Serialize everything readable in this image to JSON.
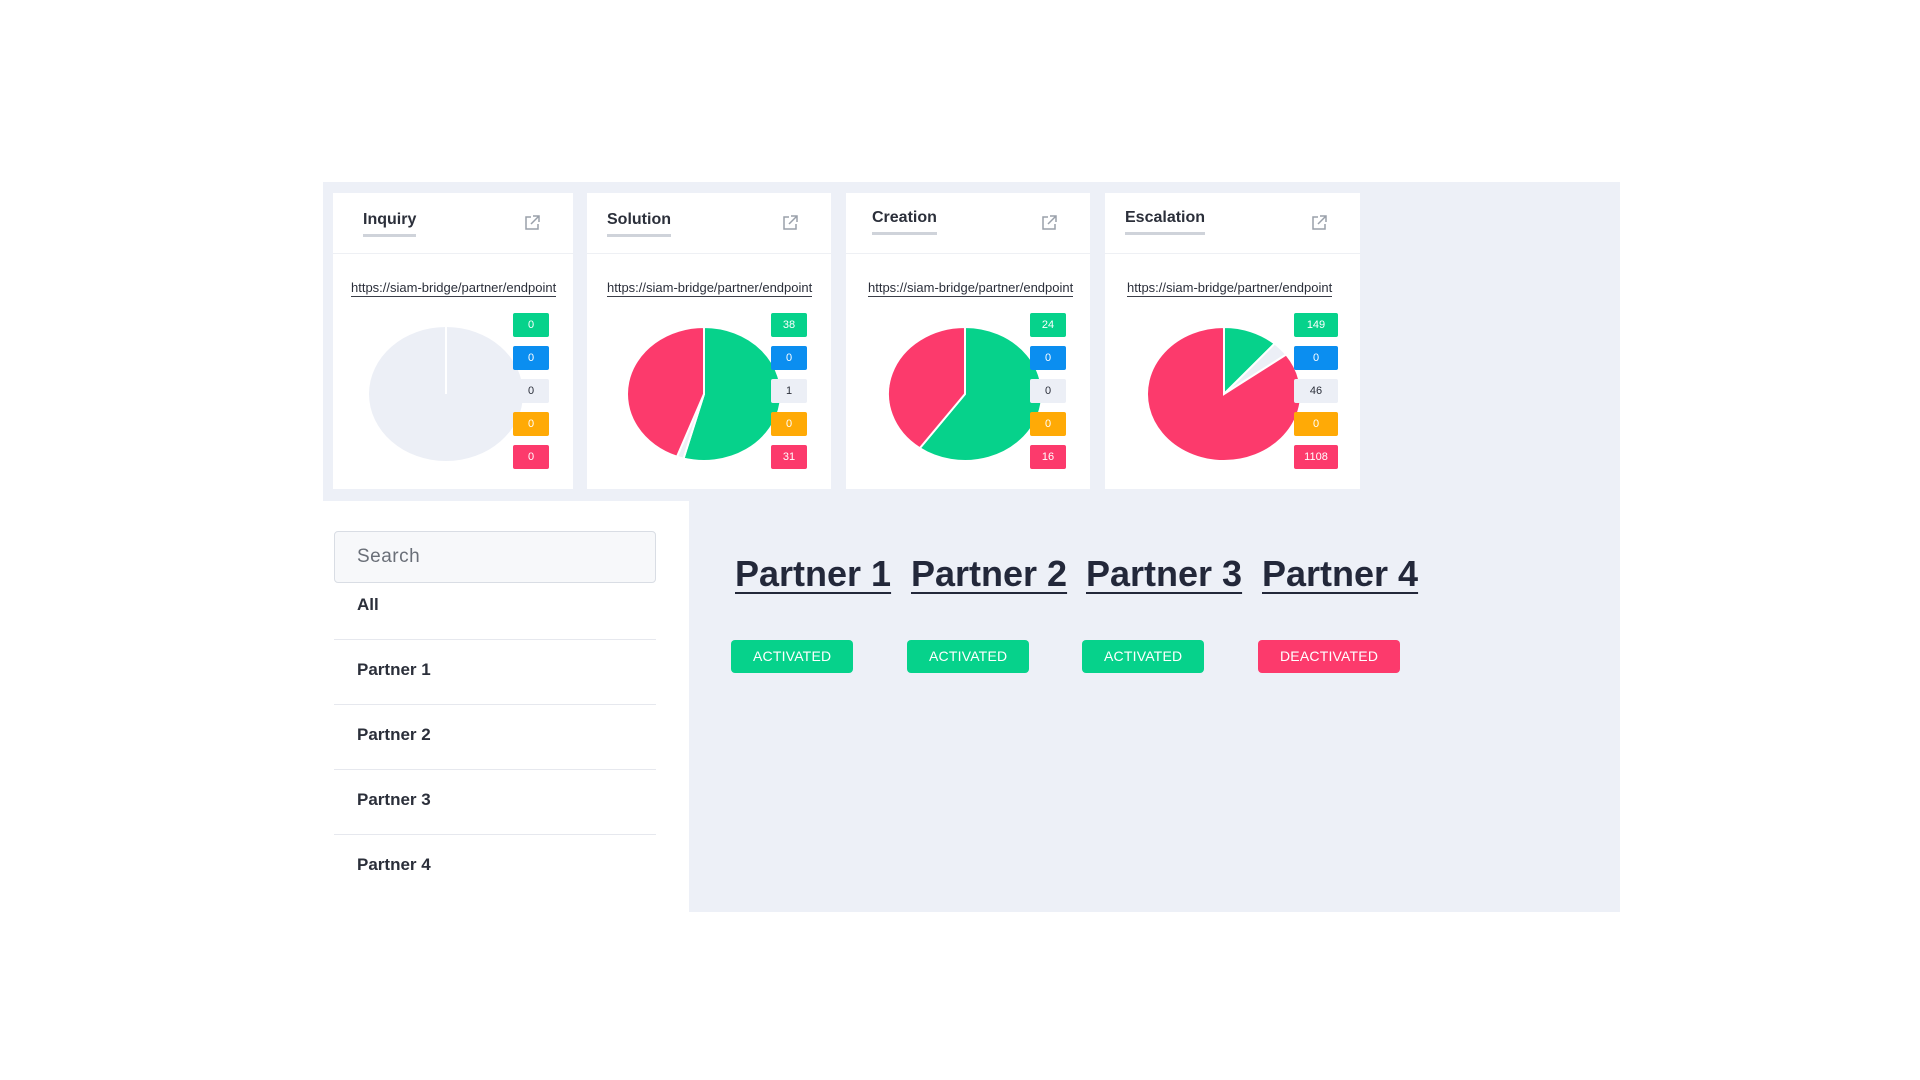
{
  "colors": {
    "green": "#06d28b",
    "blue": "#0b8ef0",
    "grey": "#eceff6",
    "orange": "#ffaa06",
    "red": "#fc3a6c",
    "empty": "#eceff6"
  },
  "cards": [
    {
      "title": "Inquiry",
      "icon": "external-link-icon",
      "url": "https://siam-bridge/partner/endpoint",
      "badges": [
        "0",
        "0",
        "0",
        "0",
        "0"
      ],
      "chart_slices": [
        {
          "label": "green",
          "value": 0
        },
        {
          "label": "grey",
          "value": 0
        },
        {
          "label": "red",
          "value": 0
        }
      ]
    },
    {
      "title": "Solution",
      "icon": "external-link-icon",
      "url": "https://siam-bridge/partner/endpoint",
      "badges": [
        "38",
        "0",
        "1",
        "0",
        "31"
      ],
      "chart_slices": [
        {
          "label": "green",
          "value": 38
        },
        {
          "label": "grey",
          "value": 1
        },
        {
          "label": "red",
          "value": 31
        }
      ]
    },
    {
      "title": "Creation",
      "icon": "external-link-icon",
      "url": "https://siam-bridge/partner/endpoint",
      "badges": [
        "24",
        "0",
        "0",
        "0",
        "16"
      ],
      "chart_slices": [
        {
          "label": "green",
          "value": 24
        },
        {
          "label": "grey",
          "value": 0
        },
        {
          "label": "red",
          "value": 16
        }
      ]
    },
    {
      "title": "Escalation",
      "icon": "external-link-icon",
      "url": "https://siam-bridge/partner/endpoint",
      "badges": [
        "149",
        "0",
        "46",
        "0",
        "1108"
      ],
      "chart_slices": [
        {
          "label": "green",
          "value": 149
        },
        {
          "label": "grey",
          "value": 46
        },
        {
          "label": "red",
          "value": 1108
        }
      ]
    }
  ],
  "search": {
    "placeholder": "Search"
  },
  "list": [
    "All",
    "Partner 1",
    "Partner 2",
    "Partner 3",
    "Partner 4"
  ],
  "partners": [
    {
      "name": "Partner 1",
      "status": "ACTIVATED",
      "active": true
    },
    {
      "name": "Partner 2",
      "status": "ACTIVATED",
      "active": true
    },
    {
      "name": "Partner 3",
      "status": "ACTIVATED",
      "active": true
    },
    {
      "name": "Partner 4",
      "status": "DEACTIVATED",
      "active": false
    }
  ]
}
